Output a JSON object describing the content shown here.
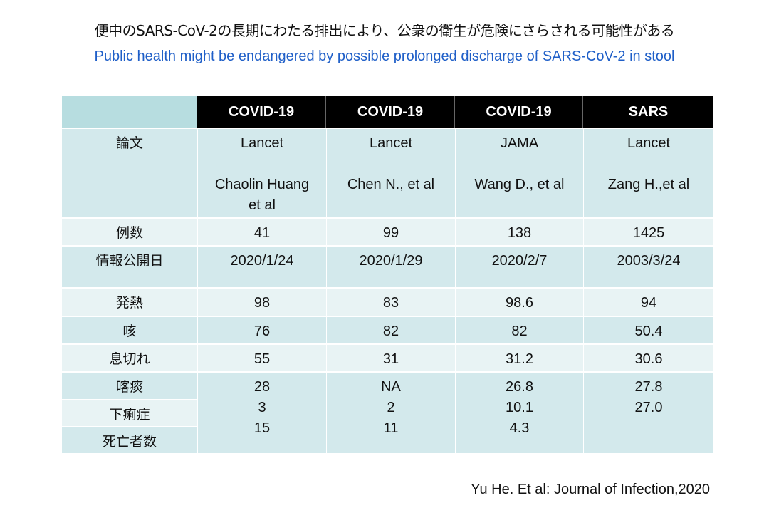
{
  "title": {
    "jp": "便中のSARS-CoV-2の長期にわたる排出により、公衆の衛生が危険にさらされる可能性がある",
    "en": "Public health might be endangered by possible prolonged discharge of SARS-CoV-2 in stool",
    "en_color": "#1f5fc8"
  },
  "table": {
    "headers": [
      "COVID-19",
      "COVID-19",
      "COVID-19",
      "SARS"
    ],
    "paper": {
      "label": "論文",
      "journals": [
        "Lancet",
        "Lancet",
        "JAMA",
        "Lancet"
      ],
      "authors": [
        "Chaolin Huang et al",
        "Chen N., et al",
        "Wang D., et al",
        "Zang H.,et al"
      ]
    },
    "cases": {
      "label": "例数",
      "values": [
        "41",
        "99",
        "138",
        "1425"
      ]
    },
    "date": {
      "label": "情報公開日",
      "values": [
        "2020/1/24",
        "2020/1/29",
        "2020/2/7",
        "2003/3/24"
      ]
    },
    "fever": {
      "label": "発熱",
      "values": [
        "98",
        "83",
        "98.6",
        "94"
      ]
    },
    "cough": {
      "label": "咳",
      "values": [
        "76",
        "82",
        "82",
        "50.4"
      ]
    },
    "dyspnea": {
      "label": "息切れ",
      "values": [
        "55",
        "31",
        "31.2",
        "30.6"
      ]
    },
    "sputum": {
      "label": "喀痰"
    },
    "diarrhea": {
      "label": "下痢症"
    },
    "deaths": {
      "label": "死亡者数"
    },
    "lower_block": [
      [
        "28",
        "3",
        "15"
      ],
      [
        "NA",
        "2",
        "11"
      ],
      [
        "26.8",
        "10.1",
        "4.3"
      ],
      [
        "27.8",
        "27.0",
        ""
      ]
    ]
  },
  "citation": "Yu He. Et al: Journal of Infection,2020"
}
